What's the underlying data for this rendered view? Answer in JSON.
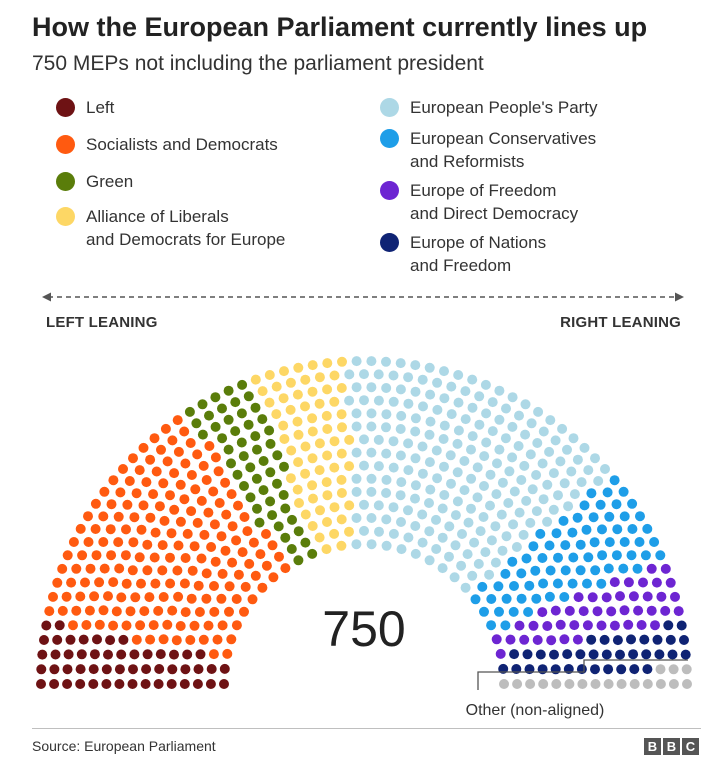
{
  "header": {
    "title": "How the European Parliament currently lines up",
    "subtitle": "750 MEPs not including the parliament president"
  },
  "axis": {
    "left_label": "LEFT LEANING",
    "right_label": "RIGHT LEANING"
  },
  "footer": {
    "source": "Source: European Parliament",
    "logo_letters": [
      "B",
      "B",
      "C"
    ]
  },
  "chart_data": {
    "type": "parliament",
    "total": 750,
    "total_label": "750",
    "rows": 15,
    "legend": {
      "left_column": [
        {
          "line1": "Left",
          "line2": "",
          "color": "#6e1214"
        },
        {
          "line1": "Socialists and Democrats",
          "line2": "",
          "color": "#ff5a10"
        },
        {
          "line1": "Green",
          "line2": "",
          "color": "#5a7d0a"
        },
        {
          "line1": "Alliance of Liberals",
          "line2": "and Democrats for Europe",
          "color": "#fdd765"
        }
      ],
      "right_column": [
        {
          "line1": "European People's Party",
          "line2": "",
          "color": "#add8e6"
        },
        {
          "line1": "European Conservatives",
          "line2": "and Reformists",
          "color": "#1e9ee8"
        },
        {
          "line1": "Europe of Freedom",
          "line2": "and Direct Democracy",
          "color": "#6d25d2"
        },
        {
          "line1": "Europe of Nations",
          "line2": "and Freedom",
          "color": "#0f2374"
        }
      ]
    },
    "groups": [
      {
        "name": "Left",
        "seats": 52,
        "color": "#6e1214"
      },
      {
        "name": "Socialists and Democrats",
        "seats": 189,
        "color": "#ff5a10"
      },
      {
        "name": "Green",
        "seats": 52,
        "color": "#5a7d0a"
      },
      {
        "name": "Alliance of Liberals and Democrats for Europe",
        "seats": 68,
        "color": "#fdd765"
      },
      {
        "name": "European People's Party",
        "seats": 216,
        "color": "#add8e6"
      },
      {
        "name": "European Conservatives and Reformists",
        "seats": 74,
        "color": "#1e9ee8"
      },
      {
        "name": "Europe of Freedom and Direct Democracy",
        "seats": 45,
        "color": "#6d25d2"
      },
      {
        "name": "Europe of Nations and Freedom",
        "seats": 36,
        "color": "#0f2374"
      },
      {
        "name": "Other (non-aligned)",
        "seats": 18,
        "color": "#bdbdbd"
      }
    ],
    "other_label": "Other (non-aligned)"
  }
}
